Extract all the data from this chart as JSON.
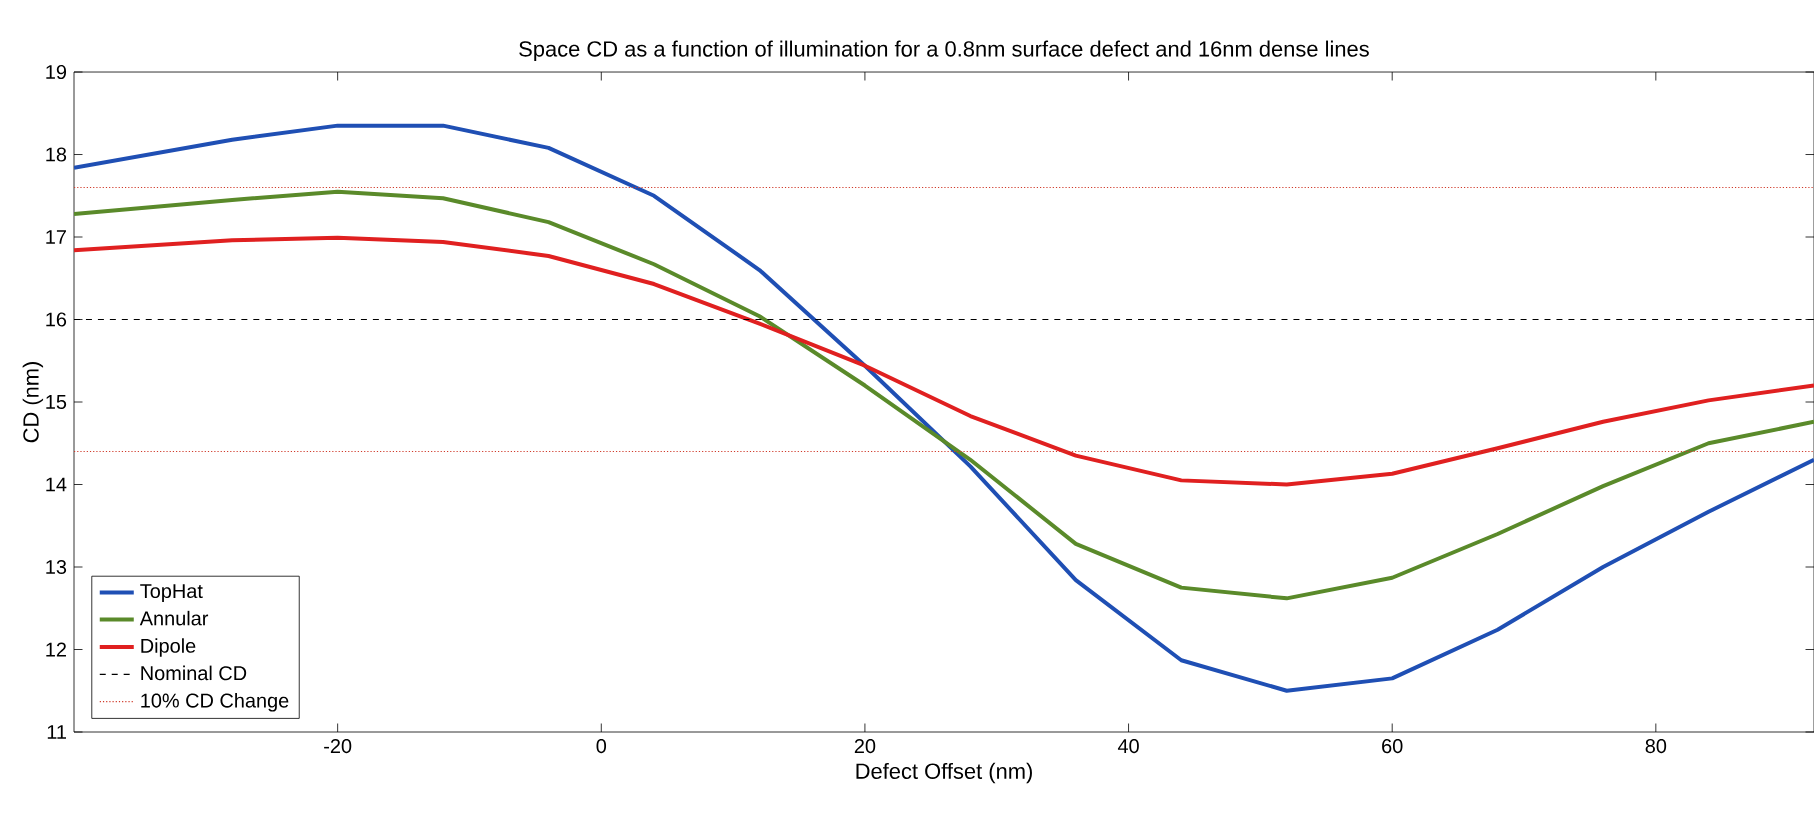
{
  "chart_data": {
    "type": "line",
    "title": "Space CD as a function of illumination for a 0.8nm surface defect and 16nm dense lines",
    "xlabel": "Defect Offset (nm)",
    "ylabel": "CD (nm)",
    "xlim": [
      -40,
      92
    ],
    "ylim": [
      11,
      19
    ],
    "xticks": [
      -20,
      0,
      20,
      40,
      60,
      80
    ],
    "yticks": [
      11,
      12,
      13,
      14,
      15,
      16,
      17,
      18,
      19
    ],
    "legend": "bottom left",
    "x": [
      -40,
      -28,
      -20,
      -12,
      -4,
      4,
      12,
      20,
      28,
      36,
      44,
      52,
      60,
      68,
      76,
      84,
      92
    ],
    "series": [
      {
        "name": "TopHat",
        "color": "#1f4fb4",
        "values": [
          17.84,
          18.18,
          18.35,
          18.35,
          18.08,
          17.5,
          16.6,
          15.44,
          14.22,
          12.84,
          11.87,
          11.5,
          11.65,
          12.24,
          13.0,
          13.67,
          14.3
        ]
      },
      {
        "name": "Annular",
        "color": "#5a8a2a",
        "values": [
          17.28,
          17.45,
          17.55,
          17.47,
          17.18,
          16.67,
          16.04,
          15.2,
          14.3,
          13.28,
          12.75,
          12.62,
          12.87,
          13.4,
          13.98,
          14.5,
          14.76
        ]
      },
      {
        "name": "Dipole",
        "color": "#e02020",
        "values": [
          16.84,
          16.96,
          16.99,
          16.94,
          16.77,
          16.43,
          15.95,
          15.44,
          14.83,
          14.35,
          14.05,
          14.0,
          14.13,
          14.44,
          14.76,
          15.02,
          15.2
        ]
      }
    ],
    "ref_lines": [
      {
        "axis": "y",
        "value": 16,
        "label": "Nominal CD",
        "color": "#000000",
        "line_style": "dashed"
      },
      {
        "axis": "y",
        "value": 17.6,
        "label": "10% CD Change",
        "color": "#d03a2a",
        "line_style": "dotted"
      },
      {
        "axis": "y",
        "value": 14.4,
        "color": "#d03a2a",
        "line_style": "dotted"
      }
    ]
  }
}
